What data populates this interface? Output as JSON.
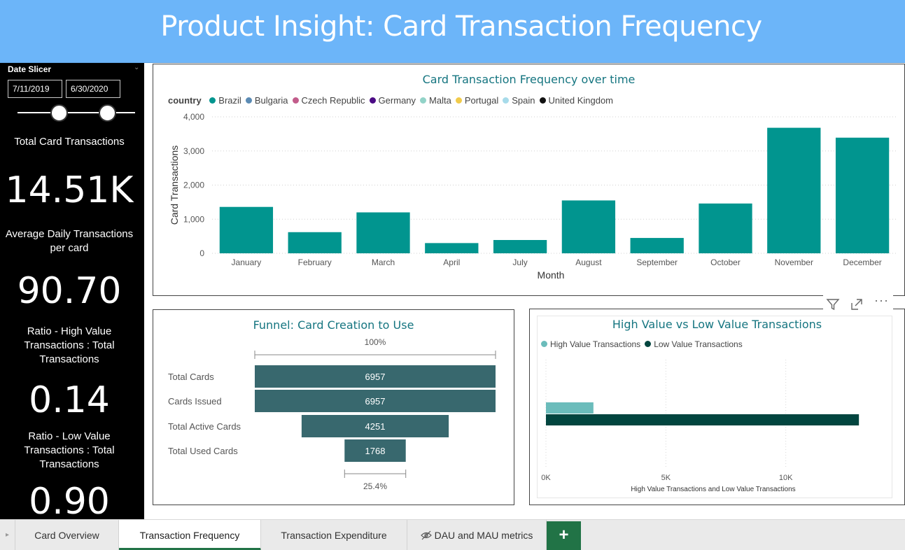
{
  "header": {
    "title": "Product Insight: Card Transaction Frequency"
  },
  "sidebar": {
    "slicer": {
      "title": "Date Slicer",
      "start_date": "7/11/2019",
      "end_date": "6/30/2020",
      "chevron_icon": "chevron-down-icon"
    },
    "kpis": [
      {
        "label": "Total Card Transactions",
        "value": "14.51K"
      },
      {
        "label": "Average Daily Transactions per card",
        "value": "90.70"
      },
      {
        "label": "Ratio - High Value Transactions : Total Transactions",
        "value": "0.14"
      },
      {
        "label": "Ratio - Low Value Transactions : Total Transactions",
        "value": "0.90"
      }
    ]
  },
  "charts": {
    "frequency": {
      "title": "Card Transaction Frequency over time",
      "legend_title": "country",
      "legend": [
        {
          "name": "Brazil",
          "color": "#01958f"
        },
        {
          "name": "Bulgaria",
          "color": "#5b8bb4"
        },
        {
          "name": "Czech Republic",
          "color": "#c25c8b"
        },
        {
          "name": "Germany",
          "color": "#4b0b85"
        },
        {
          "name": "Malta",
          "color": "#92d3c8"
        },
        {
          "name": "Portugal",
          "color": "#f1cb4b"
        },
        {
          "name": "Spain",
          "color": "#a7dbea"
        },
        {
          "name": "United Kingdom",
          "color": "#111111"
        }
      ]
    },
    "funnel": {
      "title": "Funnel: Card Creation to Use",
      "top_pct": "100%",
      "bottom_pct": "25.4%"
    },
    "high_low": {
      "title": "High Value vs Low Value Transactions"
    }
  },
  "chart_data": [
    {
      "type": "bar",
      "title": "Card Transaction Frequency over time",
      "xlabel": "Month",
      "ylabel": "Card Transactions",
      "categories": [
        "January",
        "February",
        "March",
        "April",
        "July",
        "August",
        "September",
        "October",
        "November",
        "December"
      ],
      "values": [
        1360,
        620,
        1200,
        300,
        390,
        1550,
        450,
        1460,
        3680,
        3390
      ],
      "ylim": [
        0,
        4000
      ],
      "yticks": [
        "0",
        "1,000",
        "2,000",
        "3,000",
        "4,000"
      ],
      "color": "#01958f",
      "grid": true
    },
    {
      "type": "bar",
      "title": "Funnel: Card Creation to Use",
      "categories": [
        "Total Cards",
        "Cards Issued",
        "Total Active Cards",
        "Total Used Cards"
      ],
      "values": [
        6957,
        6957,
        4251,
        1768
      ],
      "labels": [
        "6957",
        "6957",
        "4251",
        "1768"
      ],
      "color": "#38686e"
    },
    {
      "type": "bar",
      "title": "High Value vs Low Value Transactions",
      "xlabel": "High Value Transactions and Low Value Transactions",
      "series": [
        {
          "name": "High Value Transactions",
          "values": [
            1980
          ],
          "color": "#6bbcbb"
        },
        {
          "name": "Low Value Transactions",
          "values": [
            13050
          ],
          "color": "#02453f"
        }
      ],
      "xlim": [
        0,
        14300
      ],
      "xticks": [
        "0K",
        "5K",
        "10K"
      ],
      "legend": "top-left"
    }
  ],
  "tabs": {
    "items": [
      {
        "label": "Card Overview"
      },
      {
        "label": "Transaction Frequency",
        "active": true
      },
      {
        "label": "Transaction Expenditure"
      },
      {
        "label": "DAU and MAU metrics",
        "hidden_icon": "eye-hidden-icon"
      }
    ],
    "add_label": "+"
  }
}
